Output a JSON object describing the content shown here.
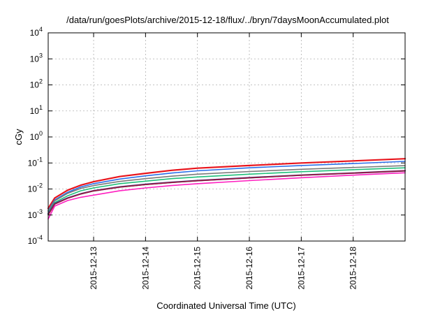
{
  "chart_data": {
    "type": "line",
    "title": "/data/run/goesPlots/archive/2015-12-18/flux/../bryn/7daysMoonAccumulated.plot",
    "xlabel": "Coordinated Universal Time (UTC)",
    "ylabel": "cGy",
    "y_scale": "log",
    "ylim_exponents": [
      -4,
      4
    ],
    "y_tick_labels": [
      {
        "base": "10",
        "exp": "-4"
      },
      {
        "base": "10",
        "exp": "-3"
      },
      {
        "base": "10",
        "exp": "-2"
      },
      {
        "base": "10",
        "exp": "-1"
      },
      {
        "base": "10",
        "exp": "0"
      },
      {
        "base": "10",
        "exp": "1"
      },
      {
        "base": "10",
        "exp": "2"
      },
      {
        "base": "10",
        "exp": "3"
      },
      {
        "base": "10",
        "exp": "4"
      }
    ],
    "x_tick_labels": [
      "2015-12-13",
      "2015-12-14",
      "2015-12-15",
      "2015-12-16",
      "2015-12-17",
      "2015-12-18"
    ],
    "xlim": [
      "2015-12-12 03:00",
      "2015-12-19 00:00"
    ],
    "grid": true,
    "legend": "none",
    "series": [
      {
        "color": "#e8141c",
        "x": [
          "2015-12-12 03:00",
          "2015-12-12 06:00",
          "2015-12-12 12:00",
          "2015-12-12 18:00",
          "2015-12-13 00:00",
          "2015-12-13 12:00",
          "2015-12-14 00:00",
          "2015-12-14 12:00",
          "2015-12-15 00:00",
          "2015-12-16 00:00",
          "2015-12-17 00:00",
          "2015-12-18 00:00",
          "2015-12-19 00:00"
        ],
        "values": [
          0.0018,
          0.0045,
          0.009,
          0.014,
          0.019,
          0.03,
          0.04,
          0.052,
          0.063,
          0.08,
          0.1,
          0.12,
          0.145
        ]
      },
      {
        "color": "#2a6ee8",
        "x": [
          "2015-12-12 03:00",
          "2015-12-12 06:00",
          "2015-12-12 12:00",
          "2015-12-12 18:00",
          "2015-12-13 00:00",
          "2015-12-13 12:00",
          "2015-12-14 00:00",
          "2015-12-14 12:00",
          "2015-12-15 00:00",
          "2015-12-16 00:00",
          "2015-12-17 00:00",
          "2015-12-18 00:00",
          "2015-12-19 00:00"
        ],
        "values": [
          0.0015,
          0.0038,
          0.0075,
          0.012,
          0.016,
          0.024,
          0.032,
          0.041,
          0.05,
          0.065,
          0.08,
          0.095,
          0.115
        ]
      },
      {
        "color": "#7a7a7a",
        "x": [
          "2015-12-12 03:00",
          "2015-12-12 06:00",
          "2015-12-12 12:00",
          "2015-12-12 18:00",
          "2015-12-13 00:00",
          "2015-12-13 12:00",
          "2015-12-14 00:00",
          "2015-12-14 12:00",
          "2015-12-15 00:00",
          "2015-12-16 00:00",
          "2015-12-17 00:00",
          "2015-12-18 00:00",
          "2015-12-19 00:00"
        ],
        "values": [
          0.0014,
          0.0035,
          0.0068,
          0.0105,
          0.0135,
          0.0195,
          0.025,
          0.031,
          0.037,
          0.047,
          0.057,
          0.067,
          0.079
        ]
      },
      {
        "color": "#1fbf7a",
        "x": [
          "2015-12-12 03:00",
          "2015-12-12 06:00",
          "2015-12-12 12:00",
          "2015-12-12 18:00",
          "2015-12-13 00:00",
          "2015-12-13 12:00",
          "2015-12-14 00:00",
          "2015-12-14 12:00",
          "2015-12-15 00:00",
          "2015-12-16 00:00",
          "2015-12-17 00:00",
          "2015-12-18 00:00",
          "2015-12-19 00:00"
        ],
        "values": [
          0.0012,
          0.003,
          0.0055,
          0.0085,
          0.011,
          0.016,
          0.02,
          0.025,
          0.029,
          0.037,
          0.046,
          0.055,
          0.065
        ]
      },
      {
        "color": "#3a2a8a",
        "x": [
          "2015-12-12 03:00",
          "2015-12-12 06:00",
          "2015-12-12 12:00",
          "2015-12-12 18:00",
          "2015-12-13 00:00",
          "2015-12-13 12:00",
          "2015-12-14 00:00",
          "2015-12-14 12:00",
          "2015-12-15 00:00",
          "2015-12-16 00:00",
          "2015-12-17 00:00",
          "2015-12-18 00:00",
          "2015-12-19 00:00"
        ],
        "values": [
          0.0011,
          0.0027,
          0.0045,
          0.0065,
          0.0085,
          0.012,
          0.015,
          0.018,
          0.021,
          0.027,
          0.034,
          0.041,
          0.05
        ]
      },
      {
        "color": "#9a1c3c",
        "x": [
          "2015-12-12 03:00",
          "2015-12-12 06:00",
          "2015-12-12 12:00",
          "2015-12-12 18:00",
          "2015-12-13 00:00",
          "2015-12-13 12:00",
          "2015-12-14 00:00",
          "2015-12-14 12:00",
          "2015-12-15 00:00",
          "2015-12-16 00:00",
          "2015-12-17 00:00",
          "2015-12-18 00:00",
          "2015-12-19 00:00"
        ],
        "values": [
          0.001,
          0.0026,
          0.0044,
          0.0064,
          0.0084,
          0.0118,
          0.0148,
          0.0178,
          0.0208,
          0.0268,
          0.0338,
          0.0408,
          0.0495
        ]
      },
      {
        "color": "#ff1fc0",
        "x": [
          "2015-12-12 03:00",
          "2015-12-12 06:00",
          "2015-12-12 12:00",
          "2015-12-12 18:00",
          "2015-12-13 00:00",
          "2015-12-13 12:00",
          "2015-12-14 00:00",
          "2015-12-14 12:00",
          "2015-12-15 00:00",
          "2015-12-16 00:00",
          "2015-12-17 00:00",
          "2015-12-18 00:00",
          "2015-12-19 00:00"
        ],
        "values": [
          0.0007,
          0.0022,
          0.0036,
          0.0048,
          0.0058,
          0.0085,
          0.011,
          0.0135,
          0.016,
          0.021,
          0.027,
          0.034,
          0.042
        ]
      }
    ]
  }
}
